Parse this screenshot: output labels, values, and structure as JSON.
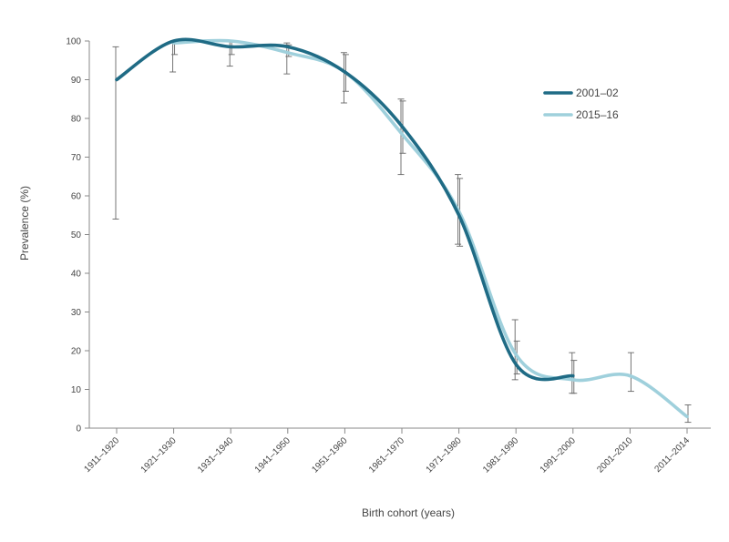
{
  "chart_data": {
    "type": "line",
    "title": "",
    "xlabel": "Birth cohort (years)",
    "ylabel": "Prevalence (%)",
    "ylim": [
      0,
      100
    ],
    "yticks": [
      0,
      10,
      20,
      30,
      40,
      50,
      60,
      70,
      80,
      90,
      100
    ],
    "categories": [
      "1911–1920",
      "1921–1930",
      "1931–1940",
      "1941–1950",
      "1951–1960",
      "1961–1970",
      "1971–1980",
      "1981–1990",
      "1991–2000",
      "2001–2010",
      "2011–2014"
    ],
    "grid": false,
    "legend_position": "top-right",
    "series": [
      {
        "name": "2001–02",
        "color": "#1f6b85",
        "values": [
          90,
          100,
          98.5,
          98.5,
          92,
          78,
          55,
          16.5,
          13.5,
          null,
          null
        ],
        "ci_low": [
          54,
          92,
          93.5,
          91.5,
          84,
          65.5,
          47.5,
          12.5,
          9,
          null,
          null
        ],
        "ci_high": [
          98.5,
          100,
          100,
          99.5,
          97,
          85,
          65.5,
          28,
          19.5,
          null,
          null
        ]
      },
      {
        "name": "2015–16",
        "color": "#9fd0dc",
        "values": [
          null,
          99.5,
          100,
          97,
          92,
          76,
          56,
          19,
          12.5,
          13.5,
          3
        ],
        "ci_low": [
          null,
          96.5,
          96.5,
          96,
          87,
          71,
          47,
          14,
          9,
          9.5,
          1.5
        ],
        "ci_high": [
          null,
          100,
          100,
          99,
          96.5,
          84.5,
          64.5,
          22.5,
          17.5,
          19.5,
          6
        ]
      }
    ]
  }
}
